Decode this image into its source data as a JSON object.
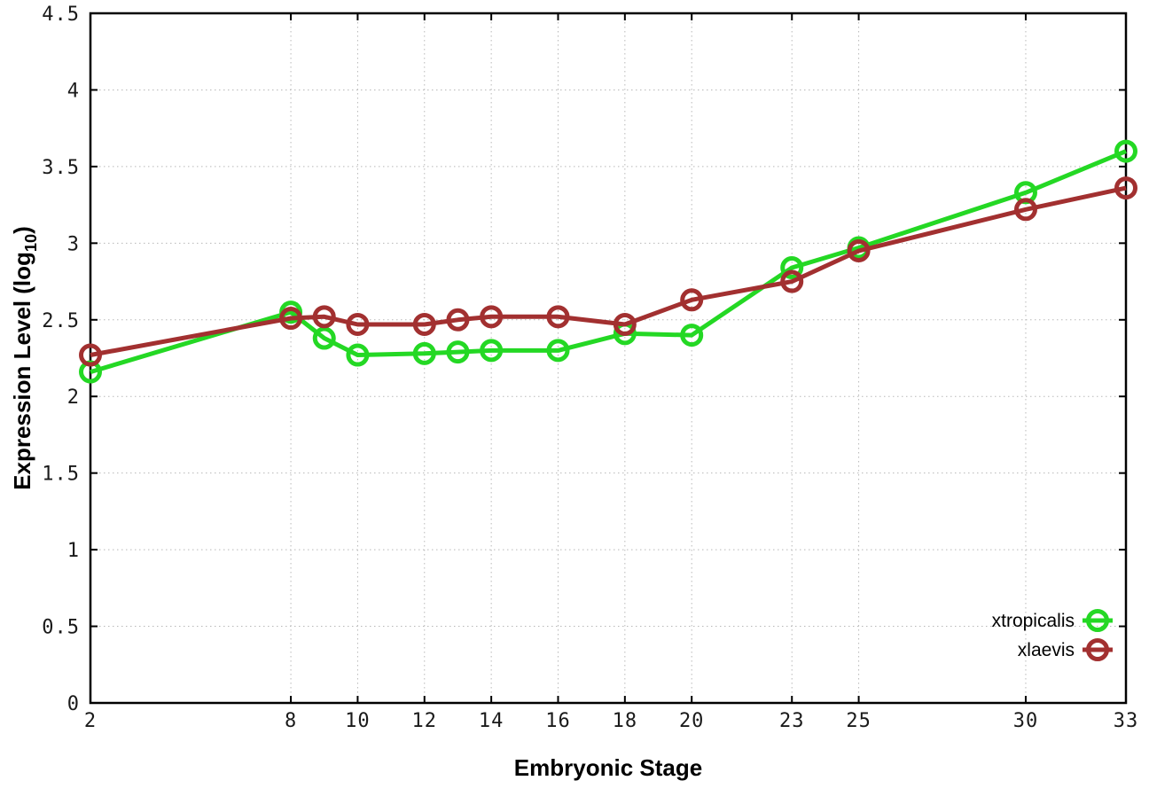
{
  "chart_data": {
    "type": "line",
    "title": "",
    "xlabel": "Embryonic Stage",
    "ylabel": "Expression Level (log10)",
    "ylabel_parts": {
      "pre": "Expression Level (log",
      "sub": "10",
      "post": ")"
    },
    "xlim": [
      2,
      33
    ],
    "ylim": [
      0,
      4.5
    ],
    "grid": true,
    "grid_style": "dotted",
    "legend_position": "bottom-right",
    "x": [
      2,
      8,
      9,
      10,
      12,
      13,
      14,
      16,
      18,
      20,
      23,
      25,
      30,
      33
    ],
    "xticks": [
      2,
      8,
      10,
      12,
      14,
      16,
      18,
      20,
      23,
      25,
      30,
      33
    ],
    "xtick_labels": [
      "2",
      "8",
      "10",
      "12",
      "14",
      "16",
      "18",
      "20",
      "23",
      "25",
      "30",
      "33"
    ],
    "yticks": [
      0,
      0.5,
      1,
      1.5,
      2,
      2.5,
      3,
      3.5,
      4,
      4.5
    ],
    "ytick_labels": [
      "0",
      "0.5",
      "1",
      "1.5",
      "2",
      "2.5",
      "3",
      "3.5",
      "4",
      "4.5"
    ],
    "series": [
      {
        "name": "xtropicalis",
        "color": "#24d824",
        "marker": "open-circle",
        "values": [
          2.16,
          2.55,
          2.38,
          2.27,
          2.28,
          2.29,
          2.3,
          2.3,
          2.41,
          2.4,
          2.84,
          2.97,
          3.33,
          3.6
        ]
      },
      {
        "name": "xlaevis",
        "color": "#a23030",
        "marker": "open-circle",
        "values": [
          2.27,
          2.51,
          2.52,
          2.47,
          2.47,
          2.5,
          2.52,
          2.52,
          2.47,
          2.63,
          2.75,
          2.95,
          3.22,
          3.36
        ]
      }
    ],
    "colors": {
      "axis": "#000000",
      "grid": "#b8b8b8",
      "background": "#ffffff"
    }
  }
}
